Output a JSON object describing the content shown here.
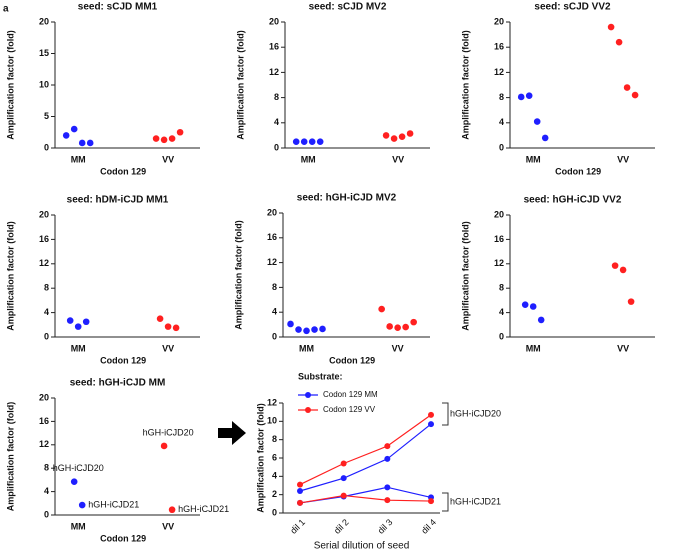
{
  "panel_label": "a",
  "chart_data": [
    {
      "type": "dot",
      "title": "seed: sCJD MM1",
      "xlabel": "Codon 129",
      "ylabel": "Amplification factor (fold)",
      "categories": [
        "MM",
        "VV"
      ],
      "colors": [
        "#1f1fff",
        "#ff2020"
      ],
      "values": [
        [
          2.0,
          3.0,
          0.8,
          0.8
        ],
        [
          1.5,
          1.3,
          1.5,
          2.5
        ]
      ],
      "ylim": [
        0,
        20
      ],
      "yticks": [
        0,
        5,
        10,
        15,
        20
      ]
    },
    {
      "type": "dot",
      "title": "seed: sCJD MV2",
      "ylabel": "Amplification factor (fold)",
      "categories": [
        "MM",
        "VV"
      ],
      "colors": [
        "#1f1fff",
        "#ff2020"
      ],
      "values": [
        [
          1.0,
          1.0,
          1.0,
          1.0
        ],
        [
          2.0,
          1.5,
          1.8,
          2.3
        ]
      ],
      "ylim": [
        0,
        20
      ],
      "yticks": [
        0,
        4,
        8,
        12,
        16,
        20
      ]
    },
    {
      "type": "dot",
      "title": "seed: sCJD VV2",
      "xlabel": "Codon 129",
      "ylabel": "Amplification factor (fold)",
      "categories": [
        "MM",
        "VV"
      ],
      "colors": [
        "#1f1fff",
        "#ff2020"
      ],
      "values": [
        [
          8.1,
          8.3,
          4.2,
          1.6
        ],
        [
          19.2,
          16.8,
          9.6,
          8.4
        ]
      ],
      "ylim": [
        0,
        20
      ],
      "yticks": [
        0,
        4,
        8,
        12,
        16,
        20
      ]
    },
    {
      "type": "dot",
      "title": "seed: hDM-iCJD MM1",
      "xlabel": "Codon 129",
      "ylabel": "Amplification factor (fold)",
      "categories": [
        "MM",
        "VV"
      ],
      "colors": [
        "#1f1fff",
        "#ff2020"
      ],
      "values": [
        [
          2.7,
          1.7,
          2.5
        ],
        [
          3.0,
          1.7,
          1.5
        ]
      ],
      "ylim": [
        0,
        20
      ],
      "yticks": [
        0,
        4,
        8,
        12,
        16,
        20
      ]
    },
    {
      "type": "dot",
      "title": "seed: hGH-iCJD MV2",
      "xlabel": "Codon 129",
      "ylabel": "Amplification factor (fold)",
      "categories": [
        "MM",
        "VV"
      ],
      "colors": [
        "#1f1fff",
        "#ff2020"
      ],
      "values": [
        [
          2.1,
          1.2,
          1.0,
          1.2,
          1.3
        ],
        [
          4.5,
          1.7,
          1.5,
          1.6,
          2.4
        ]
      ],
      "ylim": [
        0,
        20
      ],
      "yticks": [
        0,
        4,
        8,
        12,
        16,
        20
      ]
    },
    {
      "type": "dot",
      "title": "seed: hGH-iCJD VV2",
      "ylabel": "Amplification factor (fold)",
      "categories": [
        "MM",
        "VV"
      ],
      "colors": [
        "#1f1fff",
        "#ff2020"
      ],
      "values": [
        [
          5.3,
          5.0,
          2.8
        ],
        [
          11.7,
          11.0,
          5.8
        ]
      ],
      "ylim": [
        0,
        20
      ],
      "yticks": [
        0,
        4,
        8,
        12,
        16,
        20
      ]
    },
    {
      "type": "dot",
      "title": "seed: hGH-iCJD MM",
      "xlabel": "Codon 129",
      "ylabel": "Amplification factor (fold)",
      "categories": [
        "MM",
        "VV"
      ],
      "colors": [
        "#1f1fff",
        "#ff2020"
      ],
      "values": [
        [
          5.7,
          1.7
        ],
        [
          11.8,
          0.9
        ]
      ],
      "point_labels": [
        [
          "hGH-iCJD20",
          "hGH-iCJD21"
        ],
        [
          "hGH-iCJD20",
          "hGH-iCJD21"
        ]
      ],
      "ylim": [
        0,
        20
      ],
      "yticks": [
        0,
        4,
        8,
        12,
        16,
        20
      ]
    },
    {
      "type": "line",
      "title": "Substrate:",
      "xlabel": "Serial dilution of seed",
      "ylabel": "Amplification factor (fold)",
      "categories": [
        "dil 1",
        "dil 2",
        "dil 3",
        "dil 4"
      ],
      "series": [
        {
          "name": "Codon 129 MM",
          "color": "#1f1fff",
          "values": [
            2.4,
            3.8,
            5.9,
            9.7
          ]
        },
        {
          "name": "Codon 129 VV",
          "color": "#ff2020",
          "values": [
            3.1,
            5.4,
            7.3,
            10.7
          ]
        },
        {
          "color": "#1f1fff",
          "values": [
            1.1,
            1.8,
            2.8,
            1.7
          ]
        },
        {
          "color": "#ff2020",
          "values": [
            1.1,
            1.9,
            1.4,
            1.3
          ]
        }
      ],
      "annotations": [
        "hGH-iCJD20",
        "hGH-iCJD21"
      ],
      "ylim": [
        0,
        12
      ],
      "yticks": [
        0,
        2,
        4,
        6,
        8,
        10,
        12
      ]
    }
  ]
}
